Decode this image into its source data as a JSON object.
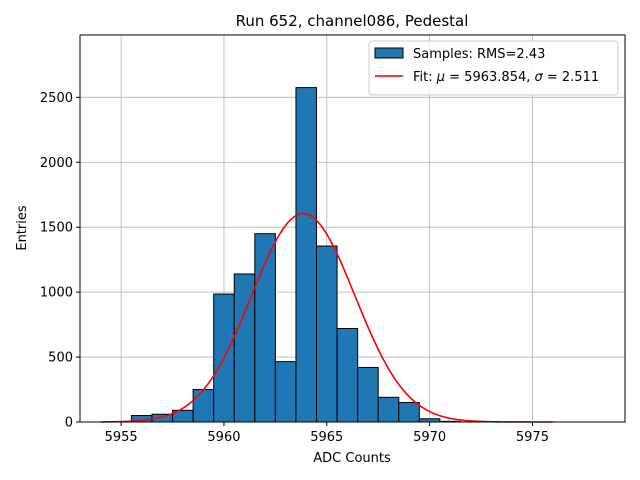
{
  "chart_data": {
    "type": "bar",
    "title": "Run 652, channel086, Pedestal",
    "xlabel": "ADC Counts",
    "ylabel": "Entries",
    "xlim": [
      5953.0,
      5979.5
    ],
    "ylim": [
      0,
      2980
    ],
    "xticks": [
      5955,
      5960,
      5965,
      5970,
      5975
    ],
    "yticks": [
      0,
      500,
      1000,
      1500,
      2000,
      2500
    ],
    "grid": true,
    "legend_position": "top-right",
    "bin_width": 1,
    "bins": [
      {
        "x": 5956,
        "count": 50
      },
      {
        "x": 5957,
        "count": 60
      },
      {
        "x": 5958,
        "count": 90
      },
      {
        "x": 5959,
        "count": 250
      },
      {
        "x": 5960,
        "count": 985
      },
      {
        "x": 5961,
        "count": 1140
      },
      {
        "x": 5962,
        "count": 1450
      },
      {
        "x": 5963,
        "count": 465
      },
      {
        "x": 5964,
        "count": 2575
      },
      {
        "x": 5965,
        "count": 1355
      },
      {
        "x": 5966,
        "count": 720
      },
      {
        "x": 5967,
        "count": 420
      },
      {
        "x": 5968,
        "count": 190
      },
      {
        "x": 5969,
        "count": 150
      },
      {
        "x": 5970,
        "count": 25
      },
      {
        "x": 5971,
        "count": 5
      }
    ],
    "fit": {
      "mu": 5963.854,
      "sigma": 2.511,
      "amplitude": 1605,
      "x_range": [
        5954,
        5976
      ]
    },
    "legend": [
      {
        "label": "Samples: RMS=2.43",
        "color": "#1f77b4",
        "kind": "patch"
      },
      {
        "label_prefix": "Fit: ",
        "mu_symbol": "μ",
        "mu_text": " = 5963.854, ",
        "sigma_symbol": "σ",
        "sigma_text": " = 2.511",
        "color": "#ff0000",
        "kind": "line"
      }
    ],
    "colors": {
      "bar": "#1f77b4",
      "bar_edge": "#000000",
      "fit": "#ff0000",
      "grid": "#b0b0b0"
    }
  }
}
